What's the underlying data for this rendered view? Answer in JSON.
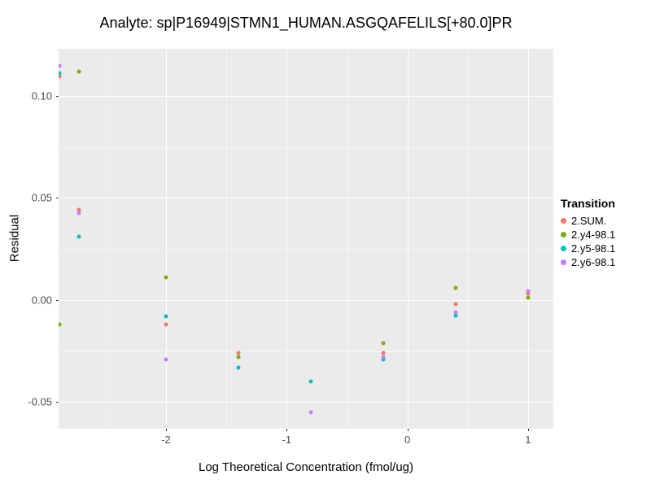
{
  "chart_data": {
    "type": "scatter",
    "title": "Analyte: sp|P16949|STMN1_HUMAN.ASGQAFELILS[+80.0]PR",
    "xlabel": "Log Theoretical Concentration (fmol/ug)",
    "ylabel": "Residual",
    "xlim": [
      -2.89,
      1.21
    ],
    "ylim": [
      -0.063,
      0.123
    ],
    "x_ticks": [
      -2,
      -1,
      0,
      1
    ],
    "x_tick_labels": [
      "-2",
      "-1",
      "0",
      "1"
    ],
    "y_ticks": [
      -0.05,
      0,
      0.05,
      0.1
    ],
    "y_tick_labels": [
      "-0.05",
      "0.00",
      "0.05",
      "0.10"
    ],
    "x_minor_ticks": [
      -2.5,
      -1.5,
      -0.5,
      0.5
    ],
    "y_minor_ticks": [
      -0.025,
      0.025,
      0.075
    ],
    "grid": true,
    "panel_bg": "#EBEBEB",
    "grid_major_color": "#FFFFFF",
    "grid_minor_color": "rgba(255,255,255,0.5)",
    "legend_title": "Transition",
    "legend_position": "right",
    "series": [
      {
        "name": "2.SUM.",
        "color": "#F8766D",
        "points": [
          [
            -2.88,
            0.1095
          ],
          [
            -2.72,
            0.044
          ],
          [
            -2,
            -0.012
          ],
          [
            -1.4,
            -0.026
          ],
          [
            -0.2,
            -0.026
          ],
          [
            0.4,
            -0.002
          ],
          [
            1,
            0.003
          ]
        ]
      },
      {
        "name": "2.y4-98.1",
        "color": "#7CAE00",
        "points": [
          [
            -2.88,
            -0.012
          ],
          [
            -2.72,
            0.112
          ],
          [
            -2,
            0.011
          ],
          [
            -1.4,
            -0.028
          ],
          [
            -0.2,
            -0.021
          ],
          [
            0.4,
            0.006
          ],
          [
            1,
            0.001
          ]
        ]
      },
      {
        "name": "2.y5-98.1",
        "color": "#00BFC4",
        "points": [
          [
            -2.88,
            0.111
          ],
          [
            -2.72,
            0.031
          ],
          [
            -2,
            -0.008
          ],
          [
            -1.4,
            -0.033
          ],
          [
            -0.8,
            -0.04
          ],
          [
            -0.2,
            -0.029
          ],
          [
            0.4,
            -0.0075
          ]
        ]
      },
      {
        "name": "2.y6-98.1",
        "color": "#C77CFF",
        "points": [
          [
            -2.88,
            0.1145
          ],
          [
            -2.72,
            0.0425
          ],
          [
            -2,
            -0.029
          ],
          [
            -0.8,
            -0.055
          ],
          [
            -0.2,
            -0.028
          ],
          [
            0.4,
            -0.006
          ],
          [
            1,
            0.0045
          ]
        ]
      }
    ]
  }
}
